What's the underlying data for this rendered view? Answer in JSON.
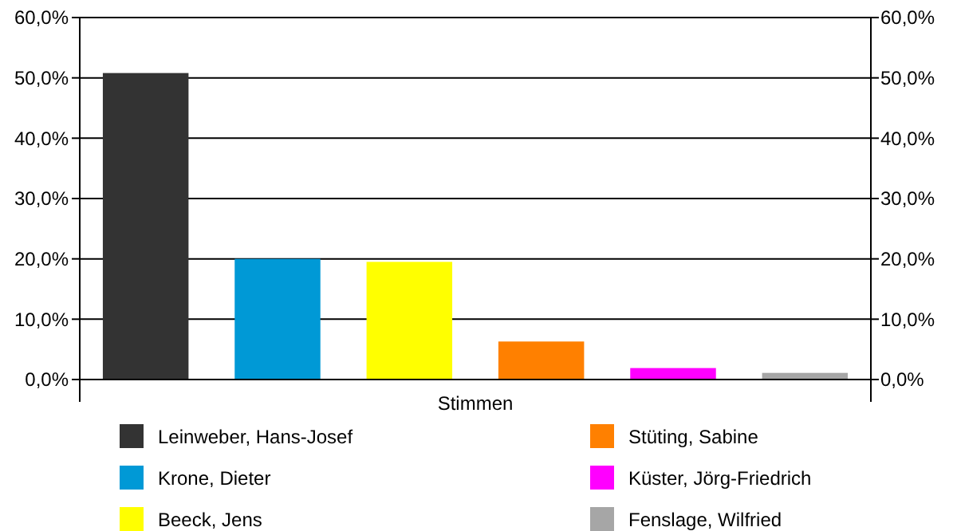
{
  "chart_data": {
    "type": "bar",
    "categories": [
      "Stimmen"
    ],
    "series": [
      {
        "name": "Leinweber, Hans-Josef",
        "color": "#333333",
        "values": [
          50.8
        ]
      },
      {
        "name": "Krone, Dieter",
        "color": "#0099d6",
        "values": [
          20.0
        ]
      },
      {
        "name": "Beeck, Jens",
        "color": "#ffff00",
        "values": [
          19.5
        ]
      },
      {
        "name": "Stüting, Sabine",
        "color": "#ff8000",
        "values": [
          6.3
        ]
      },
      {
        "name": "Küster, Jörg-Friedrich",
        "color": "#ff00ff",
        "values": [
          1.9
        ]
      },
      {
        "name": "Fenslage, Wilfried",
        "color": "#a6a6a6",
        "values": [
          1.1
        ]
      }
    ],
    "ylim": [
      0,
      60
    ],
    "yticks": [
      {
        "value": 0,
        "label": "0,0%"
      },
      {
        "value": 10,
        "label": "10,0%"
      },
      {
        "value": 20,
        "label": "20,0%"
      },
      {
        "value": 30,
        "label": "30,0%"
      },
      {
        "value": 40,
        "label": "40,0%"
      },
      {
        "value": 50,
        "label": "50,0%"
      },
      {
        "value": 60,
        "label": "60,0%"
      }
    ],
    "grid": "y",
    "legend": "bottom"
  }
}
